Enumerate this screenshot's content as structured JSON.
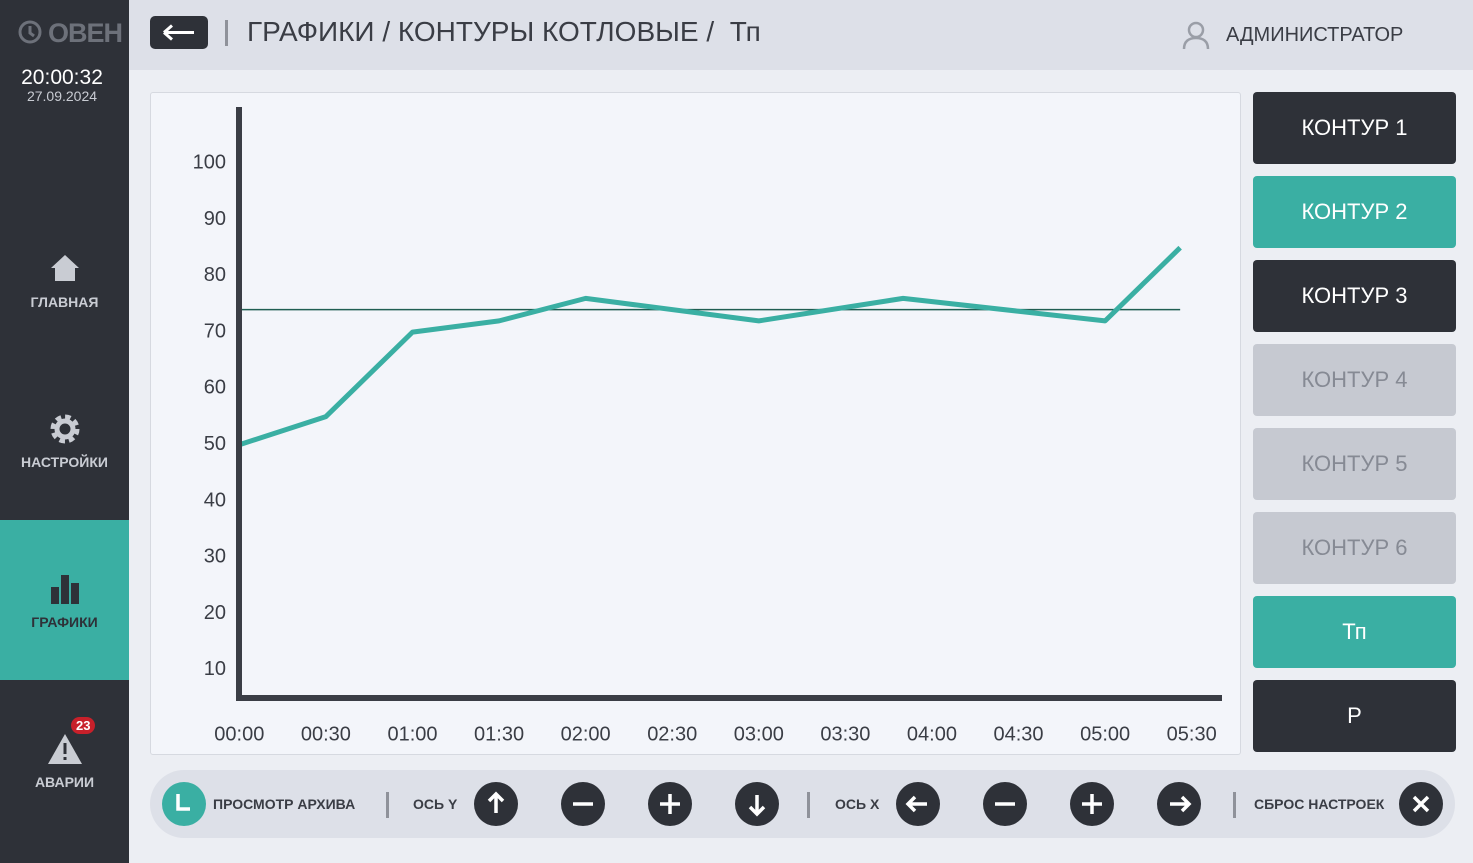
{
  "sidebar": {
    "logo": "ОВЕН",
    "time": "20:00:32",
    "date": "27.09.2024",
    "nav": [
      {
        "label": "ГЛАВНАЯ",
        "icon": "home"
      },
      {
        "label": "НАСТРОЙКИ",
        "icon": "gear"
      },
      {
        "label": "ГРАФИКИ",
        "icon": "bars",
        "active": true
      },
      {
        "label": "АВАРИИ",
        "icon": "alarm",
        "badge": 23
      }
    ]
  },
  "header": {
    "title": "ГРАФИКИ / КОНТУРЫ КОТЛОВЫЕ /  Тп",
    "user": "АДМИНИСТРАТОР"
  },
  "chart_data": {
    "type": "line",
    "x": [
      0,
      30,
      40,
      60,
      90,
      120,
      180,
      230,
      300,
      326
    ],
    "series": [
      {
        "color": "#3aafa3",
        "values": [
          50,
          55,
          60,
          70,
          72,
          76,
          72,
          76,
          72,
          85
        ]
      }
    ],
    "reference_line": {
      "value": 74,
      "color": "#1f5e52"
    },
    "xlim": [
      -1.5,
      340.5
    ],
    "xticks": [
      {
        "value": 0,
        "label": "00:00"
      },
      {
        "value": 30,
        "label": "00:30"
      },
      {
        "value": 60,
        "label": "01:00"
      },
      {
        "value": 90,
        "label": "01:30"
      },
      {
        "value": 120,
        "label": "02:00"
      },
      {
        "value": 150,
        "label": "02:30"
      },
      {
        "value": 180,
        "label": "03:00"
      },
      {
        "value": 210,
        "label": "03:30"
      },
      {
        "value": 240,
        "label": "04:00"
      },
      {
        "value": 270,
        "label": "04:30"
      },
      {
        "value": 300,
        "label": "05:00"
      },
      {
        "value": 330,
        "label": "05:30"
      }
    ],
    "ylim": [
      5,
      110
    ],
    "yticks": [
      10,
      20,
      30,
      40,
      50,
      60,
      70,
      80,
      90,
      100
    ],
    "grid": false
  },
  "channels": [
    {
      "label": "КОНТУР 1",
      "state": "normal"
    },
    {
      "label": "КОНТУР 2",
      "state": "active"
    },
    {
      "label": "КОНТУР 3",
      "state": "normal"
    },
    {
      "label": "КОНТУР 4",
      "state": "disabled"
    },
    {
      "label": "КОНТУР 5",
      "state": "disabled"
    },
    {
      "label": "КОНТУР 6",
      "state": "disabled"
    },
    {
      "label": "Тп",
      "state": "active"
    },
    {
      "label": "Р",
      "state": "normal"
    }
  ],
  "toolbar": {
    "archive": "ПРОСМОТР АРХИВА",
    "y_axis": "ОСЬ Y",
    "x_axis": "ОСЬ X",
    "reset": "СБРОС НАСТРОЕК"
  }
}
